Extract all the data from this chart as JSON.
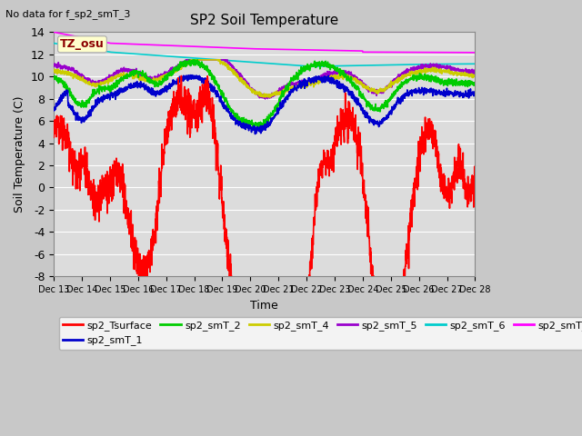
{
  "title": "SP2 Soil Temperature",
  "no_data_text": "No data for f_sp2_smT_3",
  "xlabel": "Time",
  "ylabel": "Soil Temperature (C)",
  "ylim": [
    -8,
    14
  ],
  "xlim": [
    0,
    15
  ],
  "yticks": [
    -8,
    -6,
    -4,
    -2,
    0,
    2,
    4,
    6,
    8,
    10,
    12,
    14
  ],
  "xtick_labels": [
    "Dec 13",
    "Dec 14",
    "Dec 15",
    "Dec 16",
    "Dec 17",
    "Dec 18",
    "Dec 19",
    "Dec 20",
    "Dec 21",
    "Dec 22",
    "Dec 23",
    "Dec 24",
    "Dec 25",
    "Dec 26",
    "Dec 27",
    "Dec 28"
  ],
  "tz_annotation": "TZ_osu",
  "series": {
    "sp2_Tsurface": {
      "color": "#ff0000",
      "linewidth": 1.2
    },
    "sp2_smT_1": {
      "color": "#0000cc",
      "linewidth": 1.2
    },
    "sp2_smT_2": {
      "color": "#00cc00",
      "linewidth": 1.2
    },
    "sp2_smT_4": {
      "color": "#cccc00",
      "linewidth": 1.2
    },
    "sp2_smT_5": {
      "color": "#9900cc",
      "linewidth": 1.2
    },
    "sp2_smT_6": {
      "color": "#00cccc",
      "linewidth": 1.2
    },
    "sp2_smT_7": {
      "color": "#ff00ff",
      "linewidth": 1.2
    }
  }
}
